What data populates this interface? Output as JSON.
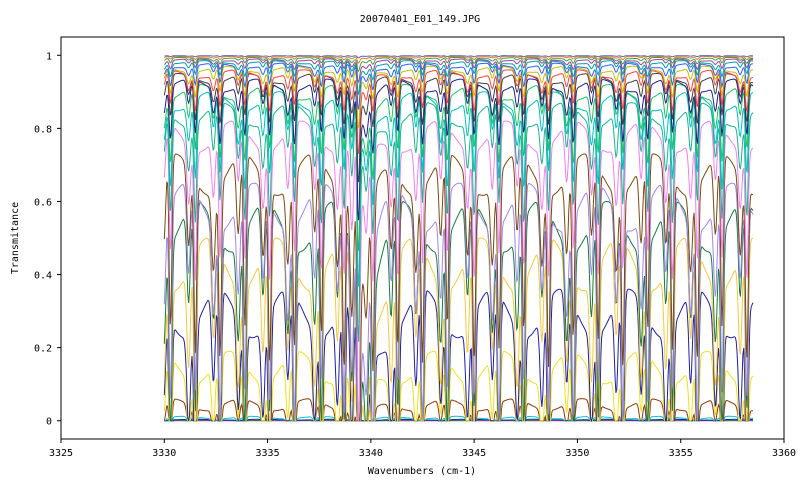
{
  "chart_data": {
    "type": "line",
    "title": "20070401_E01_149.JPG",
    "xlabel": "Wavenumbers (cm-1)",
    "ylabel": "Transmitance",
    "xlim": [
      3325,
      3360
    ],
    "ylim": [
      -0.05,
      1.05
    ],
    "x_ticks": [
      "3325",
      "3330",
      "3335",
      "3340",
      "3345",
      "3350",
      "3355",
      "3360"
    ],
    "y_ticks": [
      "0",
      "0.2",
      "0.4",
      "0.6",
      "0.8",
      "1"
    ],
    "x_range": [
      3330,
      3358.5
    ],
    "legend": "none",
    "grid": false,
    "absorption_lines_cm-1": [
      3330.3,
      3331.5,
      3332.7,
      3333.9,
      3335.1,
      3336.3,
      3337.6,
      3338.7,
      3339.4,
      3340.1,
      3341.3,
      3342.5,
      3343.7,
      3345.0,
      3346.2,
      3347.4,
      3348.6,
      3349.8,
      3351.0,
      3352.2,
      3353.4,
      3354.6,
      3355.8,
      3357.0,
      3358.2
    ],
    "series": [
      {
        "baseline": 0.0,
        "color": "#e020e0"
      },
      {
        "baseline": 0.002,
        "color": "#00aa00"
      },
      {
        "baseline": 0.004,
        "color": "#2020aa"
      },
      {
        "baseline": 0.012,
        "color": "#00c8c8"
      },
      {
        "baseline": 0.06,
        "color": "#8b3a0a"
      },
      {
        "baseline": 0.19,
        "color": "#f0e020"
      },
      {
        "baseline": 0.36,
        "color": "#2020a0"
      },
      {
        "baseline": 0.5,
        "color": "#f5c842"
      },
      {
        "baseline": 0.6,
        "color": "#1a7a3a"
      },
      {
        "baseline": 0.65,
        "color": "#9c88ee"
      },
      {
        "baseline": 0.73,
        "color": "#7a4a10"
      },
      {
        "baseline": 0.82,
        "color": "#ee82ee"
      },
      {
        "baseline": 0.87,
        "color": "#20b090"
      },
      {
        "baseline": 0.9,
        "color": "#00c0c0"
      },
      {
        "baseline": 0.92,
        "color": "#20c060"
      },
      {
        "baseline": 0.935,
        "color": "#202090"
      },
      {
        "baseline": 0.95,
        "color": "#404040"
      },
      {
        "baseline": 0.96,
        "color": "#ff4040"
      },
      {
        "baseline": 0.97,
        "color": "#c0c000"
      },
      {
        "baseline": 0.978,
        "color": "#3060ff"
      },
      {
        "baseline": 0.985,
        "color": "#00a0a0"
      },
      {
        "baseline": 0.99,
        "color": "#a040a0"
      },
      {
        "baseline": 0.994,
        "color": "#40a040"
      },
      {
        "baseline": 0.997,
        "color": "#e08020"
      },
      {
        "baseline": 0.999,
        "color": "#6060c0"
      }
    ]
  }
}
